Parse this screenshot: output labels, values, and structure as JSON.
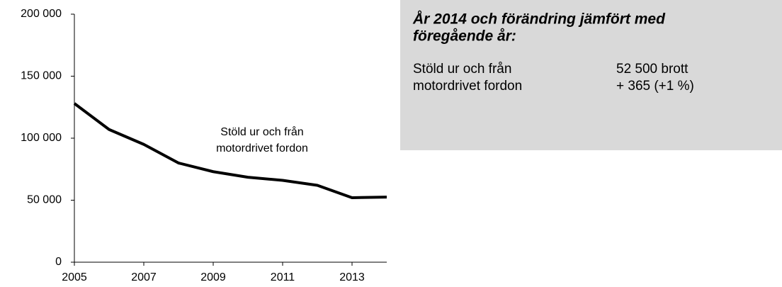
{
  "chart_data": {
    "type": "line",
    "x": [
      2005,
      2006,
      2007,
      2008,
      2009,
      2010,
      2011,
      2012,
      2013,
      2014
    ],
    "series": [
      {
        "color": "#000000",
        "values": [
          128000,
          107000,
          95000,
          80000,
          73000,
          68500,
          66000,
          62000,
          52000,
          52500
        ]
      }
    ],
    "xlim": [
      2005,
      2014
    ],
    "xticks": [
      2005,
      2007,
      2009,
      2011,
      2013
    ],
    "ylim": [
      0,
      200000
    ],
    "yticks": [
      0,
      {
        "value": 50000,
        "label": "50 000"
      },
      {
        "value": 100000,
        "label": "100 000"
      },
      {
        "value": 150000,
        "label": "150 000"
      },
      {
        "value": 200000,
        "label": "200 000"
      }
    ],
    "annotation": [
      "Stöld ur och från",
      "motordrivet fordon"
    ]
  },
  "info_box": {
    "title": [
      "År 2014 och förändring jämfört med",
      "föregående år:"
    ],
    "label": [
      "Stöld ur och från",
      "motordrivet fordon"
    ],
    "value": [
      "52 500 brott",
      "+ 365 (+1 %)"
    ]
  }
}
